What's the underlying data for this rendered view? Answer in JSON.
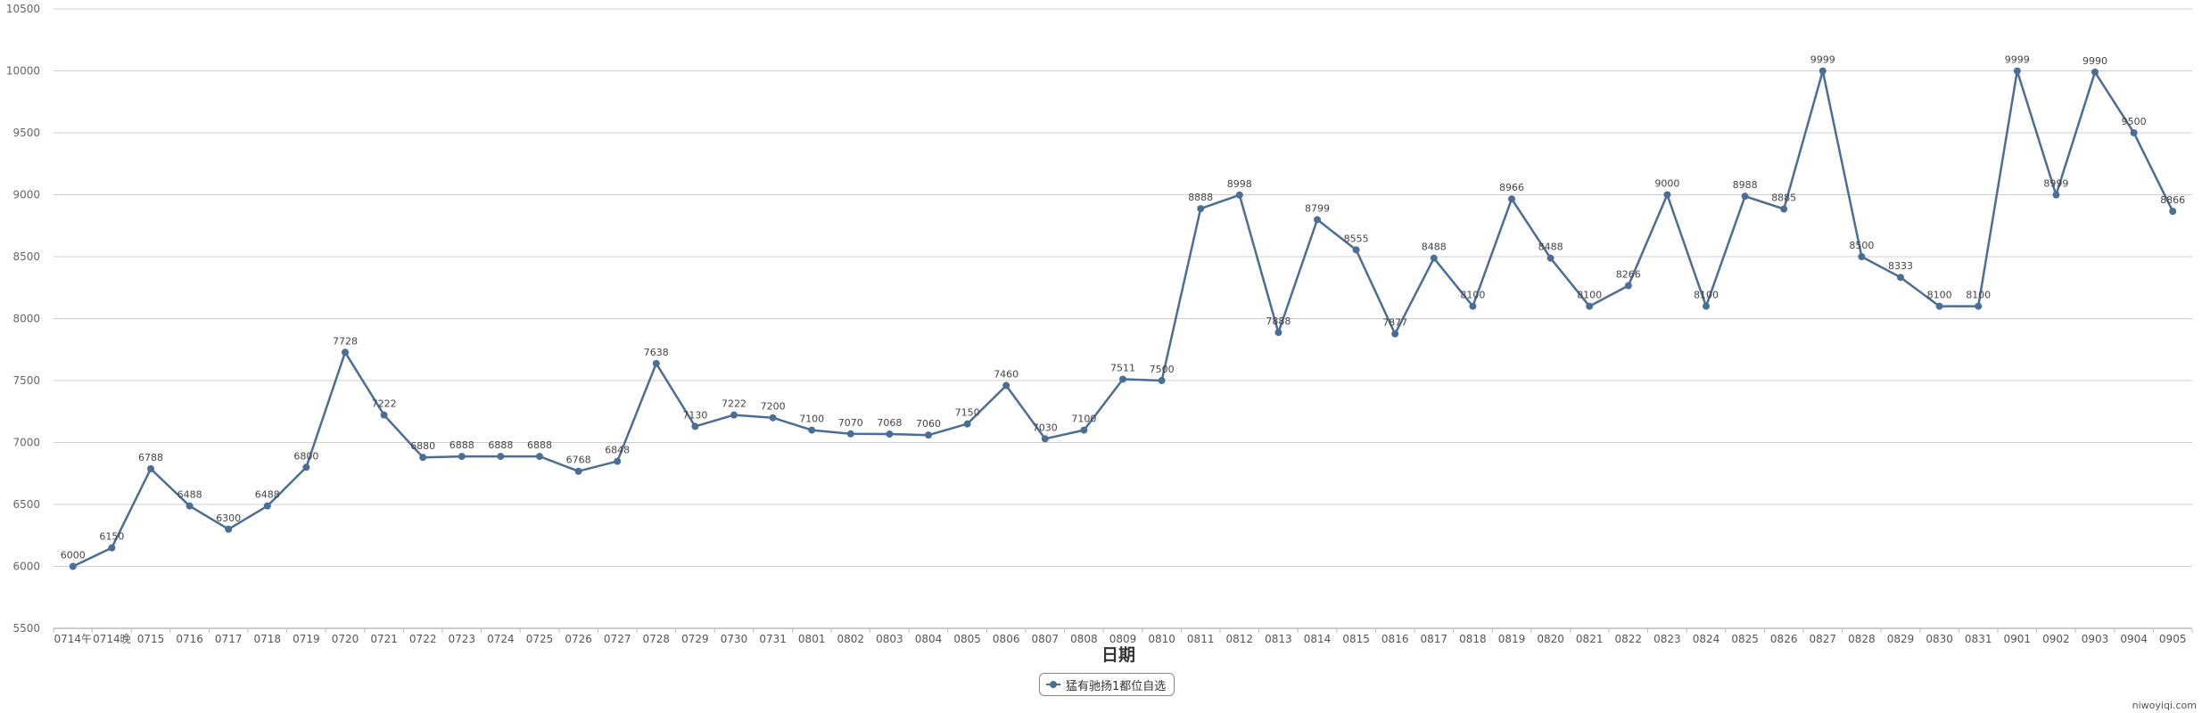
{
  "chart_data": {
    "type": "line",
    "xlabel": "日期",
    "ylabel": "",
    "ylim": [
      5500,
      10500
    ],
    "yticks": [
      5500,
      6000,
      6500,
      7000,
      7500,
      8000,
      8500,
      9000,
      9500,
      10000,
      10500
    ],
    "grid": true,
    "legend_position": "bottom-center",
    "color": "#4a6e96",
    "categories": [
      "0714午",
      "0714晚",
      "0715",
      "0716",
      "0717",
      "0718",
      "0719",
      "0720",
      "0721",
      "0722",
      "0723",
      "0724",
      "0725",
      "0726",
      "0727",
      "0728",
      "0729",
      "0730",
      "0731",
      "0801",
      "0802",
      "0803",
      "0804",
      "0805",
      "0806",
      "0807",
      "0808",
      "0809",
      "0810",
      "0811",
      "0812",
      "0813",
      "0814",
      "0815",
      "0816",
      "0817",
      "0818",
      "0819",
      "0820",
      "0821",
      "0822",
      "0823",
      "0824",
      "0825",
      "0826",
      "0827",
      "0828",
      "0829",
      "0830",
      "0831",
      "0901",
      "0902",
      "0903",
      "0904",
      "0905"
    ],
    "series": [
      {
        "name": "猛有驰扬1都位自选",
        "values": [
          6000,
          6150,
          6788,
          6488,
          6300,
          6488,
          6800,
          7728,
          7222,
          6880,
          6888,
          6888,
          6888,
          6768,
          6848,
          7638,
          7130,
          7222,
          7200,
          7100,
          7070,
          7068,
          7060,
          7150,
          7460,
          7030,
          7100,
          7511,
          7500,
          8888,
          8998,
          7888,
          8799,
          8555,
          7877,
          8488,
          8100,
          8966,
          8488,
          8100,
          8266,
          9000,
          8100,
          8988,
          8885,
          9999,
          8500,
          8333,
          8100,
          8100,
          9999,
          8999,
          9990,
          9500,
          8866
        ]
      }
    ]
  },
  "watermark": "niwoyiqi.com"
}
